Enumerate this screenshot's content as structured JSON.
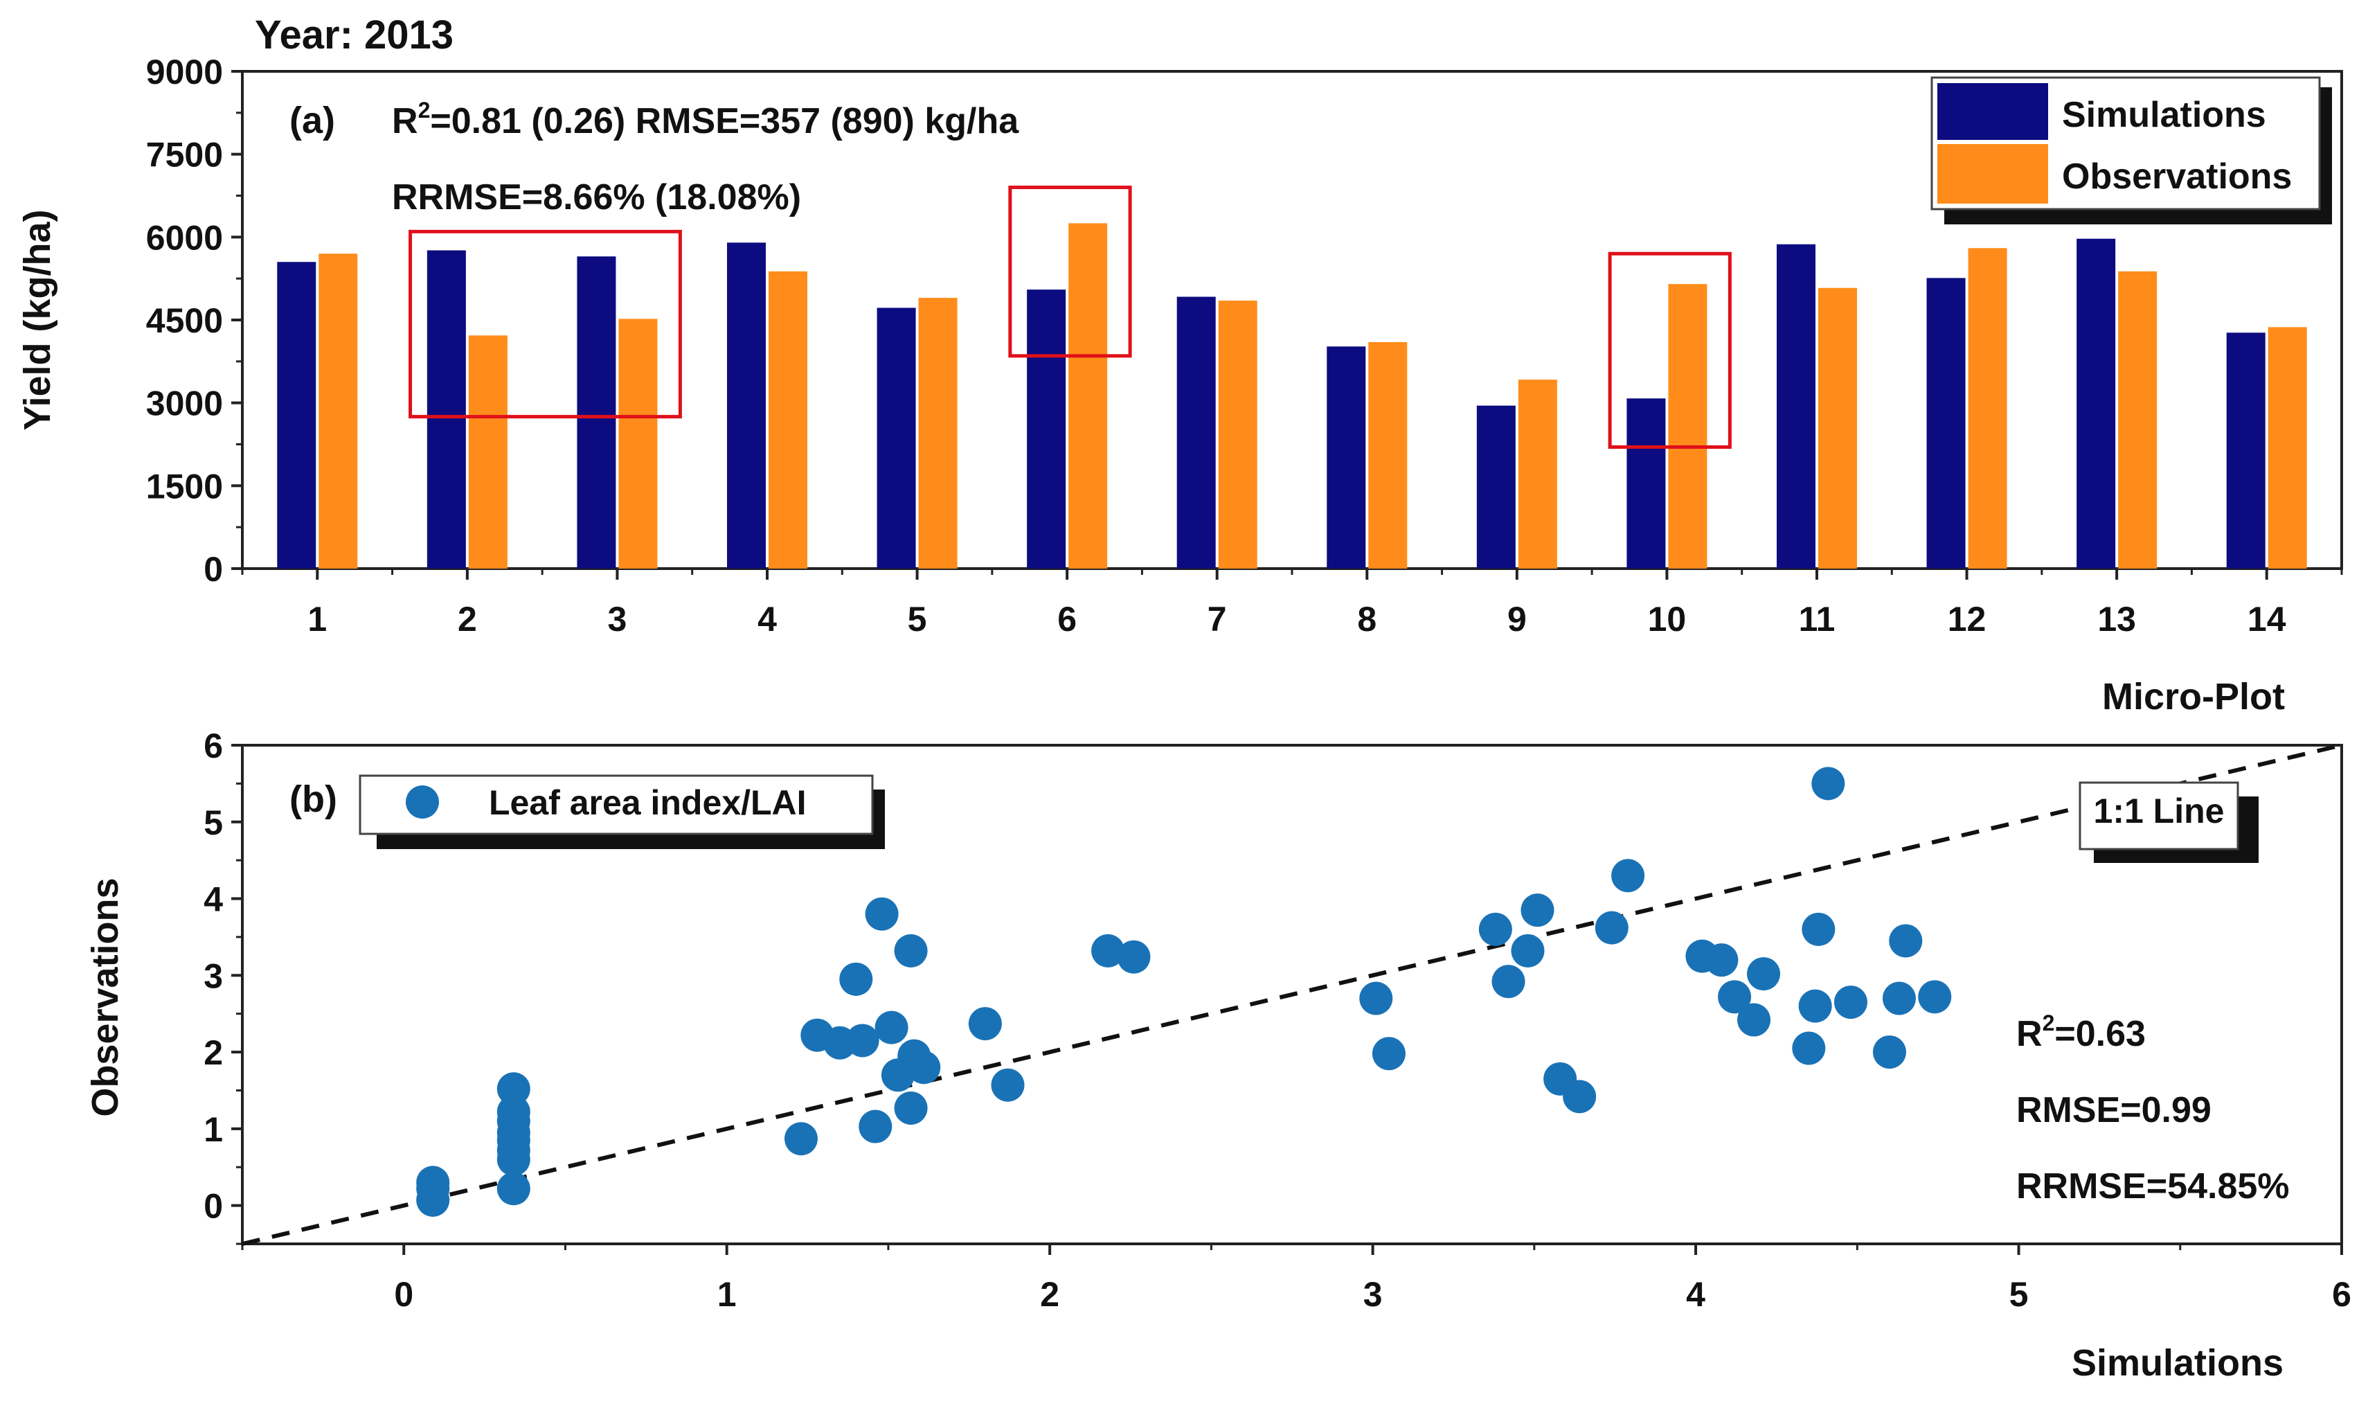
{
  "figure_title": "Year: 2013",
  "chart_data": [
    {
      "type": "bar",
      "panel_label": "(a)",
      "title": "",
      "xlabel": "Micro-Plot",
      "ylabel": "Yield (kg/ha)",
      "ylim": [
        0,
        9000
      ],
      "y_ticks": [
        "0",
        "1500",
        "3000",
        "4500",
        "6000",
        "7500",
        "9000"
      ],
      "categories": [
        "1",
        "2",
        "3",
        "4",
        "5",
        "6",
        "7",
        "8",
        "9",
        "10",
        "11",
        "12",
        "13",
        "14"
      ],
      "series": [
        {
          "name": "Simulations",
          "color": "#0c0c80",
          "values": [
            5550,
            5760,
            5650,
            5900,
            4720,
            5050,
            4920,
            4020,
            2950,
            3080,
            5870,
            5260,
            5970,
            4270
          ]
        },
        {
          "name": "Observations",
          "color": "#ff8c1a",
          "values": [
            5700,
            4220,
            4520,
            5380,
            4900,
            6250,
            4850,
            4100,
            3420,
            5150,
            5080,
            5800,
            5380,
            4370
          ]
        }
      ],
      "annotations": {
        "line1": "=0.81 (0.26) RMSE=357 (890) kg/ha",
        "line2": "RRMSE=8.66% (18.08%)",
        "r_symbol": "R",
        "r_sup": "2"
      },
      "highlight_boxes": [
        {
          "categories": [
            "2",
            "3"
          ],
          "y_range": [
            2750,
            6100
          ],
          "color": "#e0101a"
        },
        {
          "categories": [
            "6"
          ],
          "y_range": [
            3850,
            6900
          ],
          "color": "#e0101a"
        },
        {
          "categories": [
            "10"
          ],
          "y_range": [
            2200,
            5700
          ],
          "color": "#e0101a"
        }
      ],
      "legend_position": "top-right",
      "grid": false
    },
    {
      "type": "scatter",
      "panel_label": "(b)",
      "title": "",
      "xlabel": "Simulations",
      "ylabel": "Observations",
      "xlim": [
        -0.5,
        6
      ],
      "ylim": [
        -0.5,
        6
      ],
      "x_ticks": [
        "0",
        "1",
        "2",
        "3",
        "4",
        "5",
        "6"
      ],
      "y_ticks": [
        "0",
        "1",
        "2",
        "3",
        "4",
        "5",
        "6"
      ],
      "series": [
        {
          "name": "Leaf area index/LAI",
          "color": "#1a72b6",
          "points": [
            [
              0.09,
              0.3
            ],
            [
              0.09,
              0.22
            ],
            [
              0.09,
              0.07
            ],
            [
              0.34,
              1.52
            ],
            [
              0.34,
              1.22
            ],
            [
              0.34,
              1.1
            ],
            [
              0.34,
              0.95
            ],
            [
              0.34,
              0.85
            ],
            [
              0.34,
              0.72
            ],
            [
              0.34,
              0.6
            ],
            [
              0.34,
              0.22
            ],
            [
              1.23,
              0.87
            ],
            [
              1.28,
              2.22
            ],
            [
              1.35,
              2.12
            ],
            [
              1.4,
              2.95
            ],
            [
              1.42,
              2.15
            ],
            [
              1.46,
              1.03
            ],
            [
              1.48,
              3.8
            ],
            [
              1.51,
              2.32
            ],
            [
              1.53,
              1.7
            ],
            [
              1.57,
              3.32
            ],
            [
              1.57,
              1.27
            ],
            [
              1.58,
              1.95
            ],
            [
              1.61,
              1.8
            ],
            [
              1.8,
              2.37
            ],
            [
              1.87,
              1.57
            ],
            [
              2.18,
              3.32
            ],
            [
              2.26,
              3.24
            ],
            [
              3.01,
              2.7
            ],
            [
              3.05,
              1.98
            ],
            [
              3.38,
              3.6
            ],
            [
              3.42,
              2.92
            ],
            [
              3.48,
              3.32
            ],
            [
              3.51,
              3.85
            ],
            [
              3.58,
              1.65
            ],
            [
              3.64,
              1.42
            ],
            [
              3.74,
              3.62
            ],
            [
              3.79,
              4.3
            ],
            [
              4.02,
              3.25
            ],
            [
              4.08,
              3.2
            ],
            [
              4.12,
              2.72
            ],
            [
              4.18,
              2.42
            ],
            [
              4.21,
              3.02
            ],
            [
              4.35,
              2.05
            ],
            [
              4.37,
              2.6
            ],
            [
              4.38,
              3.6
            ],
            [
              4.41,
              5.5
            ],
            [
              4.48,
              2.65
            ],
            [
              4.6,
              2.0
            ],
            [
              4.63,
              2.7
            ],
            [
              4.65,
              3.45
            ],
            [
              4.74,
              2.72
            ]
          ]
        }
      ],
      "reference_line": {
        "name": "1:1 Line",
        "from": [
          -0.5,
          -0.5
        ],
        "to": [
          6,
          6
        ],
        "style": "dashed"
      },
      "annotations": {
        "r_symbol": "R",
        "r_sup": "2",
        "r2": "=0.63",
        "rmse": "RMSE=0.99",
        "rrmse": "RRMSE=54.85%"
      },
      "legend_position": "top-left",
      "grid": false
    }
  ]
}
